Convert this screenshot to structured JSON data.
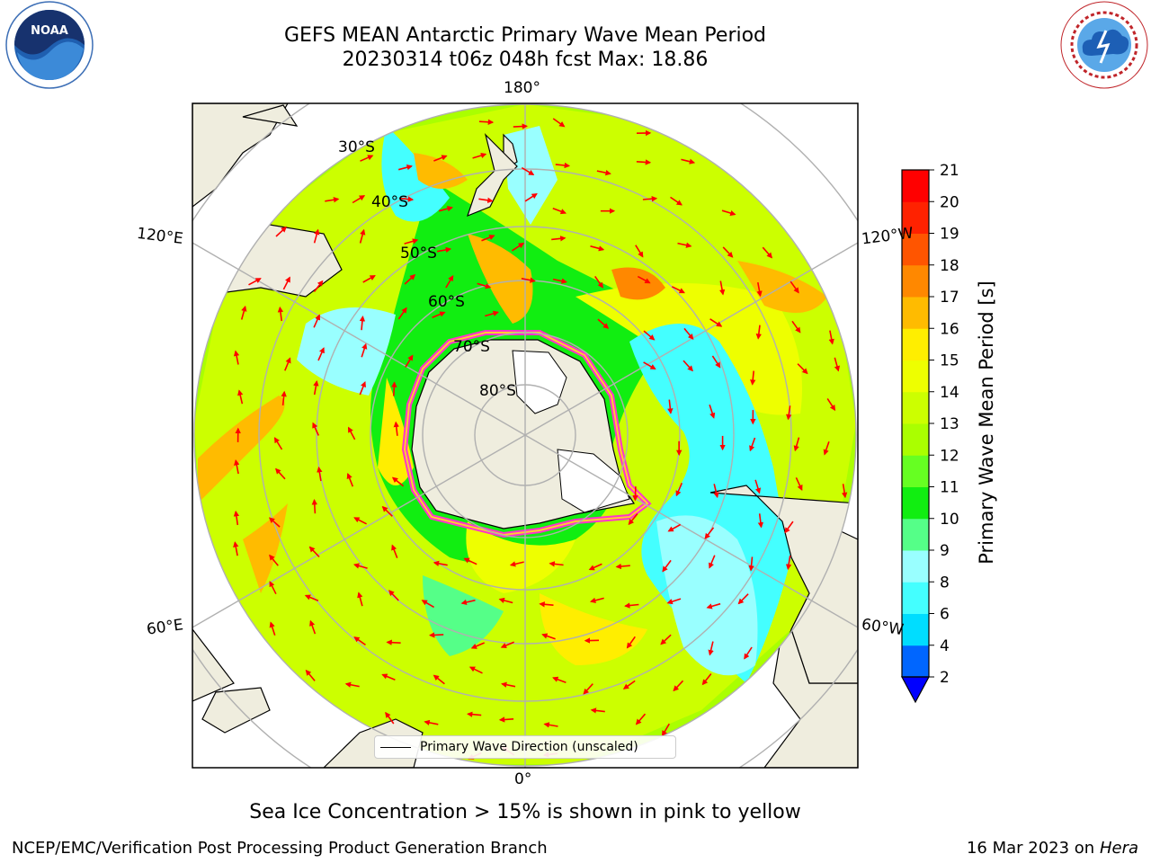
{
  "header": {
    "title_line1": "GEFS MEAN Antarctic Primary Wave Mean Period",
    "title_line2": "20230314 t06z 048h fcst   Max: 18.86"
  },
  "logos": {
    "noaa_icon": "noaa-logo-icon",
    "noaa_text": "NOAA",
    "nws_icon": "nws-logo-icon"
  },
  "map": {
    "projection": "south-polar-stereographic",
    "longitude_labels": [
      "180°",
      "120°E",
      "120°W",
      "60°E",
      "60°W",
      "0°"
    ],
    "latitude_labels": [
      "30°S",
      "40°S",
      "50°S",
      "60°S",
      "70°S",
      "80°S"
    ],
    "arrow_color": "#ff0000",
    "land_color": "#efedde",
    "sea_ice_colors": [
      "#ff33cc",
      "#ffcc33"
    ]
  },
  "legend": {
    "label": "Primary Wave Direction (unscaled)"
  },
  "colorbar": {
    "label": "Primary Wave Mean Period [s]",
    "ticks": [
      2,
      4,
      6,
      8,
      9,
      10,
      11,
      12,
      13,
      14,
      15,
      16,
      17,
      18,
      19,
      20,
      21
    ],
    "colors": [
      "#0066ff",
      "#00ddff",
      "#44ffff",
      "#99ffff",
      "#55ff88",
      "#11ee11",
      "#66ff22",
      "#aaff00",
      "#ccff00",
      "#eeff00",
      "#ffee00",
      "#ffbb00",
      "#ff8800",
      "#ff5500",
      "#ff2200",
      "#ff0000"
    ],
    "extend_color": "#0000ff"
  },
  "footer": {
    "caption": "Sea Ice Concentration > 15% is shown in pink to yellow",
    "org": "NCEP/EMC/Verification Post Processing Product Generation Branch",
    "date": "16 Mar 2023 on",
    "machine": "Hera"
  }
}
